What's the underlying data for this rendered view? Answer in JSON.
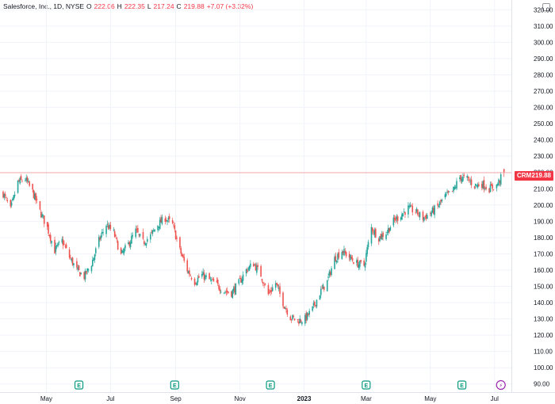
{
  "legend": {
    "title": "Salesforce, Inc., 1D, NYSE",
    "open_label": "O",
    "open": "222.06",
    "high_label": "H",
    "high": "222.35",
    "low_label": "L",
    "low": "217.24",
    "close_label": "C",
    "close": "219.88",
    "change": "+7.07 (+3.32%)"
  },
  "price_tag": {
    "symbol": "CRM",
    "price": "219.88"
  },
  "colors": {
    "up": "#26a69a",
    "down": "#ef5350",
    "last_price_line": "#f7a9a8",
    "tag": "#f23645",
    "event": "#089981",
    "split": "#9c27b0"
  },
  "events": [
    {
      "type": "earnings",
      "date": "2022-06-01",
      "letter": "E"
    },
    {
      "type": "earnings",
      "date": "2022-08-31",
      "letter": "E"
    },
    {
      "type": "earnings",
      "date": "2022-11-30",
      "letter": "E"
    },
    {
      "type": "earnings",
      "date": "2023-03-01",
      "letter": "E"
    },
    {
      "type": "earnings",
      "date": "2023-05-31",
      "letter": "E"
    },
    {
      "type": "dividend-or-split",
      "date": "2023-07-07",
      "letter": "⚡"
    }
  ],
  "chart_data": {
    "type": "candlestick",
    "symbol": "CRM",
    "interval": "1D",
    "x_ticks": [
      "May",
      "Jul",
      "Sep",
      "Nov",
      "2023",
      "Mar",
      "May",
      "Jul"
    ],
    "y_ticks": [
      90,
      100,
      110,
      120,
      130,
      140,
      150,
      160,
      170,
      180,
      190,
      200,
      210,
      220,
      230,
      240,
      250,
      260,
      270,
      280,
      290,
      300,
      310,
      320
    ],
    "ylim": [
      85,
      326
    ],
    "xlim": [
      "2022-03-21",
      "2023-07-14"
    ],
    "last_price": 219.88,
    "close_path": [
      [
        "2022-03-21",
        207
      ],
      [
        "2022-03-28",
        197
      ],
      [
        "2022-04-04",
        214
      ],
      [
        "2022-04-11",
        216
      ],
      [
        "2022-04-18",
        208
      ],
      [
        "2022-04-25",
        196
      ],
      [
        "2022-05-02",
        186
      ],
      [
        "2022-05-09",
        172
      ],
      [
        "2022-05-16",
        178
      ],
      [
        "2022-05-23",
        168
      ],
      [
        "2022-05-30",
        160
      ],
      [
        "2022-06-06",
        156
      ],
      [
        "2022-06-13",
        164
      ],
      [
        "2022-06-20",
        178
      ],
      [
        "2022-06-27",
        188
      ],
      [
        "2022-07-04",
        183
      ],
      [
        "2022-07-11",
        169
      ],
      [
        "2022-07-18",
        176
      ],
      [
        "2022-07-25",
        184
      ],
      [
        "2022-08-01",
        177
      ],
      [
        "2022-08-08",
        181
      ],
      [
        "2022-08-15",
        188
      ],
      [
        "2022-08-22",
        192
      ],
      [
        "2022-08-29",
        188
      ],
      [
        "2022-09-05",
        172
      ],
      [
        "2022-09-12",
        160
      ],
      [
        "2022-09-19",
        153
      ],
      [
        "2022-09-26",
        157
      ],
      [
        "2022-10-03",
        154
      ],
      [
        "2022-10-10",
        151
      ],
      [
        "2022-10-17",
        147
      ],
      [
        "2022-10-24",
        146
      ],
      [
        "2022-10-31",
        152
      ],
      [
        "2022-11-07",
        160
      ],
      [
        "2022-11-14",
        164
      ],
      [
        "2022-11-21",
        157
      ],
      [
        "2022-11-28",
        145
      ],
      [
        "2022-12-05",
        152
      ],
      [
        "2022-12-12",
        140
      ],
      [
        "2022-12-19",
        131
      ],
      [
        "2022-12-26",
        129
      ],
      [
        "2023-01-02",
        130
      ],
      [
        "2023-01-09",
        136
      ],
      [
        "2023-01-16",
        146
      ],
      [
        "2023-01-23",
        153
      ],
      [
        "2023-01-30",
        167
      ],
      [
        "2023-02-06",
        172
      ],
      [
        "2023-02-13",
        168
      ],
      [
        "2023-02-20",
        164
      ],
      [
        "2023-02-27",
        163
      ],
      [
        "2023-03-06",
        186
      ],
      [
        "2023-03-13",
        180
      ],
      [
        "2023-03-20",
        183
      ],
      [
        "2023-03-27",
        190
      ],
      [
        "2023-04-03",
        194
      ],
      [
        "2023-04-10",
        198
      ],
      [
        "2023-04-17",
        196
      ],
      [
        "2023-04-24",
        192
      ],
      [
        "2023-05-01",
        195
      ],
      [
        "2023-05-08",
        199
      ],
      [
        "2023-05-15",
        205
      ],
      [
        "2023-05-22",
        208
      ],
      [
        "2023-05-29",
        217
      ],
      [
        "2023-06-05",
        216
      ],
      [
        "2023-06-12",
        212
      ],
      [
        "2023-06-19",
        213
      ],
      [
        "2023-06-26",
        210
      ],
      [
        "2023-07-03",
        212
      ],
      [
        "2023-07-10",
        219.88
      ]
    ]
  }
}
